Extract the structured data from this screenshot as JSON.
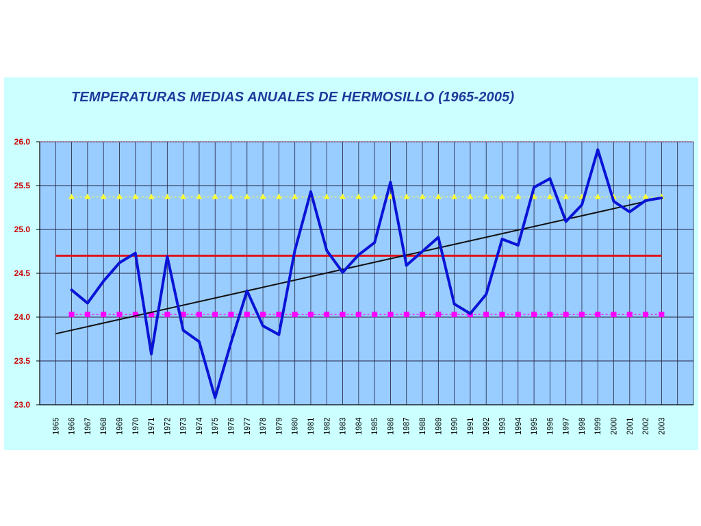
{
  "chart_data": {
    "type": "line",
    "title": "TEMPERATURAS MEDIAS ANUALES DE HERMOSILLO (1965-2005)",
    "xlabel": "",
    "ylabel": "",
    "ylim": [
      23.0,
      26.0
    ],
    "yticks": [
      "23.0",
      "23.5",
      "24.0",
      "24.5",
      "25.0",
      "25.5",
      "26.0"
    ],
    "categories": [
      "1965",
      "1966",
      "1967",
      "1968",
      "1969",
      "1970",
      "1971",
      "1972",
      "1973",
      "1974",
      "1975",
      "1976",
      "1977",
      "1978",
      "1979",
      "1980",
      "1981",
      "1982",
      "1983",
      "1984",
      "1985",
      "1986",
      "1987",
      "1988",
      "1989",
      "1990",
      "1991",
      "1992",
      "1993",
      "1994",
      "1995",
      "1996",
      "1997",
      "1998",
      "1999",
      "2000",
      "2001",
      "2002",
      "2003"
    ],
    "grid": true,
    "legend": "none",
    "series": [
      {
        "kind": "line",
        "color": "#0a14d6",
        "values": [
          null,
          24.31,
          24.16,
          24.41,
          24.62,
          24.73,
          23.58,
          24.69,
          23.85,
          23.72,
          23.08,
          23.71,
          24.3,
          23.9,
          23.8,
          24.76,
          25.43,
          24.76,
          24.51,
          24.71,
          24.85,
          25.54,
          24.59,
          24.75,
          24.91,
          24.15,
          24.04,
          24.26,
          24.89,
          24.82,
          25.48,
          25.58,
          25.09,
          25.28,
          25.91,
          25.32,
          25.2,
          25.33,
          25.36
        ]
      },
      {
        "kind": "trend",
        "color": "#111111",
        "from": {
          "year": "1965",
          "value": 23.81
        },
        "to": {
          "year": "2003",
          "value": 25.36
        }
      },
      {
        "kind": "hline",
        "color": "#e0141e",
        "value": 24.7,
        "start": "1965",
        "end": "2003"
      },
      {
        "kind": "hline-markers",
        "color": "#ffff33",
        "marker": "triangle",
        "value": 25.37,
        "start": "1966",
        "end": "2003"
      },
      {
        "kind": "hline-markers",
        "color": "#ff00ff",
        "marker": "square",
        "value": 24.03,
        "start": "1966",
        "end": "2003"
      }
    ]
  }
}
